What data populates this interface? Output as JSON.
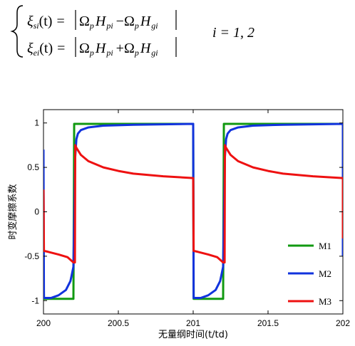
{
  "equation": {
    "line1": {
      "lhs_symbol": "ξ",
      "lhs_sub": "si",
      "lhs_arg": "(t)",
      "eq": "=",
      "term1_omega": "Ω",
      "term1_omega_sub": "p",
      "term1_h": "H",
      "term1_h_sub": "pi",
      "op": "−",
      "term2_omega": "Ω",
      "term2_omega_sub": "p",
      "term2_h": "H",
      "term2_h_sub": "gi"
    },
    "line2": {
      "lhs_symbol": "ξ",
      "lhs_sub": "ei",
      "lhs_arg": "(t)",
      "eq": "=",
      "term1_omega": "Ω",
      "term1_omega_sub": "p",
      "term1_h": "H",
      "term1_h_sub": "pi",
      "op": "+",
      "term2_omega": "Ω",
      "term2_omega_sub": "p",
      "term2_h": "H",
      "term2_h_sub": "gi"
    },
    "index_text": "i = 1, 2"
  },
  "chart_data": {
    "type": "line",
    "title": "",
    "xlabel": "无量纲时间(t/td)",
    "ylabel": "时变摩擦系数",
    "xlim": [
      200,
      202
    ],
    "ylim": [
      -1.15,
      1.15
    ],
    "x_ticks": [
      200,
      200.5,
      201,
      201.5,
      202
    ],
    "x_tick_labels": [
      "200",
      "200.5",
      "201",
      "201.5",
      "202"
    ],
    "y_ticks": [
      1,
      0.5,
      0,
      -0.5,
      -1
    ],
    "y_tick_labels": [
      "1",
      "0.5",
      "0",
      "-0.5",
      "-1"
    ],
    "grid": false,
    "legend_position": "lower-right",
    "series": [
      {
        "name": "M1",
        "color": "#119911",
        "x": [
          200,
          200.003,
          200.2,
          200.205,
          201,
          201.003,
          201.2,
          201.205,
          202,
          202.0
        ],
        "y": [
          -0.5,
          -0.98,
          -0.98,
          0.99,
          0.99,
          -0.98,
          -0.98,
          0.99,
          0.99,
          0.0
        ]
      },
      {
        "name": "M2",
        "color": "#1133dd",
        "x": [
          200,
          200.003,
          200.05,
          200.1,
          200.15,
          200.18,
          200.2,
          200.212,
          200.22,
          200.23,
          200.25,
          200.3,
          200.4,
          200.6,
          200.8,
          201,
          201.003,
          201.05,
          201.1,
          201.15,
          201.18,
          201.2,
          201.212,
          201.22,
          201.23,
          201.25,
          201.3,
          201.4,
          201.6,
          201.8,
          202,
          202.0
        ],
        "y": [
          0.7,
          -0.97,
          -0.97,
          -0.94,
          -0.88,
          -0.78,
          -0.62,
          0.62,
          0.82,
          0.88,
          0.92,
          0.95,
          0.97,
          0.98,
          0.985,
          0.99,
          -0.97,
          -0.97,
          -0.94,
          -0.88,
          -0.78,
          -0.62,
          0.62,
          0.82,
          0.88,
          0.92,
          0.95,
          0.97,
          0.98,
          0.985,
          0.99,
          -0.5
        ]
      },
      {
        "name": "M3",
        "color": "#ee1111",
        "x": [
          200,
          200.003,
          200.03,
          200.1,
          200.16,
          200.2,
          200.21,
          200.212,
          200.22,
          200.25,
          200.3,
          200.4,
          200.5,
          200.6,
          200.8,
          201,
          201.003,
          201.03,
          201.1,
          201.16,
          201.2,
          201.21,
          201.212,
          201.22,
          201.25,
          201.3,
          201.4,
          201.5,
          201.6,
          201.8,
          202,
          202.0
        ],
        "y": [
          0.25,
          -0.44,
          -0.45,
          -0.48,
          -0.51,
          -0.57,
          -0.57,
          0.75,
          0.72,
          0.64,
          0.57,
          0.5,
          0.46,
          0.43,
          0.4,
          0.38,
          -0.44,
          -0.45,
          -0.48,
          -0.51,
          -0.57,
          -0.57,
          0.75,
          0.72,
          0.64,
          0.57,
          0.5,
          0.46,
          0.43,
          0.4,
          0.38,
          -0.3
        ]
      }
    ]
  }
}
